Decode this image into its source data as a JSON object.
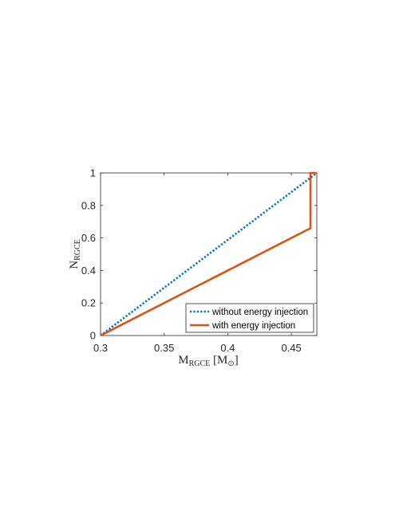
{
  "chart_data": {
    "type": "line",
    "xlabel": {
      "main": "M",
      "sub": "RGCE",
      "unit_open": " [M",
      "unit_sub": "⊙",
      "unit_close": "]"
    },
    "ylabel": {
      "main": "N",
      "sub": "RGCE"
    },
    "xlim": [
      0.3,
      0.47
    ],
    "ylim": [
      0,
      1
    ],
    "xticks": [
      0.3,
      0.35,
      0.4,
      0.45
    ],
    "xtick_labels": [
      "0.3",
      "0.35",
      "0.4",
      "0.45"
    ],
    "yticks": [
      0,
      0.2,
      0.4,
      0.6,
      0.8,
      1
    ],
    "ytick_labels": [
      "0",
      "0.2",
      "0.4",
      "0.6",
      "0.8",
      "1"
    ],
    "grid": false,
    "legend_position": "bottom-right",
    "series": [
      {
        "name": "without energy injection",
        "color": "#0072BD",
        "style": "dotted",
        "x": [
          0.3,
          0.47
        ],
        "y": [
          0,
          1
        ]
      },
      {
        "name": "with energy injection",
        "color": "#D95319",
        "style": "solid",
        "x": [
          0.3,
          0.465,
          0.465,
          0.47
        ],
        "y": [
          0,
          0.66,
          1,
          1
        ]
      }
    ]
  }
}
